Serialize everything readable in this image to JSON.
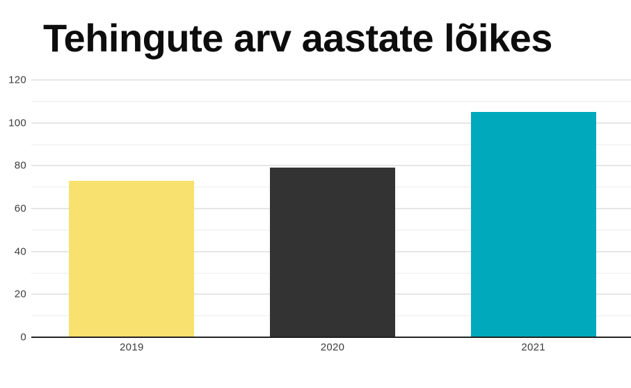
{
  "page": {
    "background": "#ffffff"
  },
  "chart_data": {
    "type": "bar",
    "title": "Tehingute arv aastate lõikes",
    "categories": [
      "2019",
      "2020",
      "2021"
    ],
    "values": [
      73,
      79,
      105
    ],
    "bar_colors": [
      "#f8e16e",
      "#333333",
      "#00a9bc"
    ],
    "xlabel": "",
    "ylabel": "",
    "ylim": [
      0,
      120
    ],
    "y_major_step": 20,
    "y_minor_step": 10,
    "y_tick_labels": [
      "0",
      "20",
      "40",
      "60",
      "80",
      "100",
      "120"
    ],
    "grid": "horizontal major and minor gridlines",
    "legend": "none",
    "bar_slot_fill": 0.623
  },
  "style_colors": {
    "major_gridline": "#cccccc",
    "minor_gridline": "#ebebeb",
    "axis_line": "#212121",
    "title_text": "#0d0d0d",
    "tick_text": "#3c3c3c"
  }
}
